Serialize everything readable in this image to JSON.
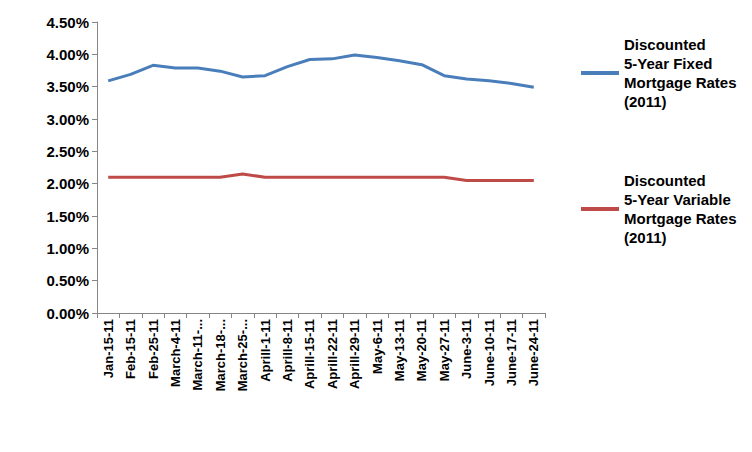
{
  "chart_data": {
    "type": "line",
    "categories": [
      "Jan-15-11",
      "Feb-15-11",
      "Feb-25-11",
      "March-4-11",
      "March-11-...",
      "March-18-...",
      "March-25-...",
      "Aprill-1-11",
      "Aprill-8-11",
      "Aprill-15-11",
      "Aprill-22-11",
      "Aprill-29-11",
      "May-6-11",
      "May-13-11",
      "May-20-11",
      "May-27-11",
      "June-3-11",
      "June-10-11",
      "June-17-11",
      "June-24-11"
    ],
    "series": [
      {
        "name": "Discounted 5-Year Fixed Mortgage Rates (2011)",
        "color": "#4a7ebb",
        "values": [
          3.59,
          3.69,
          3.83,
          3.79,
          3.79,
          3.74,
          3.65,
          3.67,
          3.81,
          3.92,
          3.93,
          3.99,
          3.95,
          3.9,
          3.84,
          3.67,
          3.62,
          3.59,
          3.55,
          3.49
        ]
      },
      {
        "name": "Discounted 5-Year Variable Mortgage Rates (2011)",
        "color": "#be4b48",
        "values": [
          2.1,
          2.1,
          2.1,
          2.1,
          2.1,
          2.1,
          2.15,
          2.1,
          2.1,
          2.1,
          2.1,
          2.1,
          2.1,
          2.1,
          2.1,
          2.1,
          2.05,
          2.05,
          2.05,
          2.05
        ]
      }
    ],
    "ylim": [
      0,
      4.5
    ],
    "yticks": [
      {
        "value": 0,
        "label": "0.00%"
      },
      {
        "value": 0.5,
        "label": "0.50%"
      },
      {
        "value": 1,
        "label": "1.00%"
      },
      {
        "value": 1.5,
        "label": "1.50%"
      },
      {
        "value": 2,
        "label": "2.00%"
      },
      {
        "value": 2.5,
        "label": "2.50%"
      },
      {
        "value": 3,
        "label": "3.00%"
      },
      {
        "value": 3.5,
        "label": "3.50%"
      },
      {
        "value": 4,
        "label": "4.00%"
      },
      {
        "value": 4.5,
        "label": "4.50%"
      }
    ],
    "grid": false,
    "legend": "right",
    "marker": "none",
    "line_style": "solid"
  }
}
